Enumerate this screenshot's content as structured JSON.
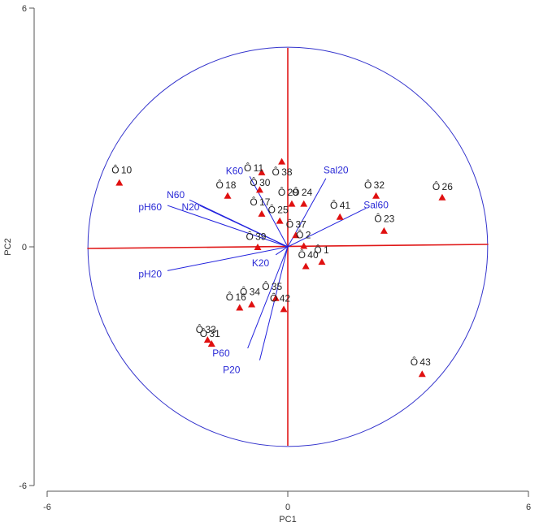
{
  "chart_data": {
    "type": "scatter",
    "xlabel": "PC1",
    "ylabel": "PC2",
    "xlim": [
      -6,
      6
    ],
    "ylim": [
      -6,
      6
    ],
    "x_ticks": [
      "-6",
      "0",
      "6"
    ],
    "y_ticks": [
      "6",
      "0",
      "-6"
    ],
    "point_marker": "Ô",
    "circle_radius": 5,
    "colors": {
      "circle": "#3333cc",
      "axes_lines": "#e01818",
      "vectors": "#2222dd",
      "triangles": "#e01010"
    },
    "labeled_points": [
      {
        "label": "10",
        "x": -4.3,
        "y": 1.93
      },
      {
        "label": "11",
        "x": -1.0,
        "y": 1.98
      },
      {
        "label": "18",
        "x": -1.7,
        "y": 1.55
      },
      {
        "label": "30",
        "x": -0.85,
        "y": 1.61
      },
      {
        "label": "38",
        "x": -0.3,
        "y": 1.88
      },
      {
        "label": "29",
        "x": -0.15,
        "y": 1.37
      },
      {
        "label": "24",
        "x": 0.2,
        "y": 1.37
      },
      {
        "label": "17",
        "x": -0.85,
        "y": 1.12
      },
      {
        "label": "25",
        "x": -0.4,
        "y": 0.93
      },
      {
        "label": "32",
        "x": 2.0,
        "y": 1.55
      },
      {
        "label": "26",
        "x": 3.7,
        "y": 1.51
      },
      {
        "label": "41",
        "x": 1.15,
        "y": 1.04
      },
      {
        "label": "23",
        "x": 2.25,
        "y": 0.7
      },
      {
        "label": "37",
        "x": 0.05,
        "y": 0.56
      },
      {
        "label": "2",
        "x": 0.3,
        "y": 0.3
      },
      {
        "label": "39",
        "x": -0.95,
        "y": 0.26
      },
      {
        "label": "1",
        "x": 0.75,
        "y": -0.08
      },
      {
        "label": "40",
        "x": 0.35,
        "y": -0.2
      },
      {
        "label": "35",
        "x": -0.55,
        "y": -1.0
      },
      {
        "label": "34",
        "x": -1.1,
        "y": -1.13
      },
      {
        "label": "16",
        "x": -1.45,
        "y": -1.27
      },
      {
        "label": "42",
        "x": -0.35,
        "y": -1.3
      },
      {
        "label": "33",
        "x": -2.2,
        "y": -2.08
      },
      {
        "label": "31",
        "x": -2.1,
        "y": -2.18
      },
      {
        "label": "43",
        "x": 3.15,
        "y": -2.9
      }
    ],
    "triangles": [
      {
        "x": -4.2,
        "y": 1.61
      },
      {
        "x": -1.5,
        "y": 1.28
      },
      {
        "x": -0.65,
        "y": 1.87
      },
      {
        "x": -0.7,
        "y": 1.43
      },
      {
        "x": -0.15,
        "y": 2.14
      },
      {
        "x": 0.1,
        "y": 1.08
      },
      {
        "x": 0.4,
        "y": 1.08
      },
      {
        "x": -0.65,
        "y": 0.83
      },
      {
        "x": -0.2,
        "y": 0.65
      },
      {
        "x": 2.2,
        "y": 1.28
      },
      {
        "x": 3.85,
        "y": 1.24
      },
      {
        "x": 1.3,
        "y": 0.75
      },
      {
        "x": 2.4,
        "y": 0.4
      },
      {
        "x": 0.2,
        "y": 0.29
      },
      {
        "x": 0.4,
        "y": 0.02
      },
      {
        "x": -0.75,
        "y": -0.01
      },
      {
        "x": 0.85,
        "y": -0.38
      },
      {
        "x": 0.45,
        "y": -0.49
      },
      {
        "x": -0.3,
        "y": -1.29
      },
      {
        "x": -0.9,
        "y": -1.45
      },
      {
        "x": -1.2,
        "y": -1.53
      },
      {
        "x": -0.1,
        "y": -1.57
      },
      {
        "x": -2.0,
        "y": -2.34
      },
      {
        "x": -1.9,
        "y": -2.44
      },
      {
        "x": 3.35,
        "y": -3.2
      }
    ],
    "vectors": [
      {
        "label": "K60",
        "x": -0.95,
        "y": 1.77
      },
      {
        "label": "N60",
        "x": -2.45,
        "y": 1.18
      },
      {
        "label": "pH60",
        "x": -3.0,
        "y": 1.04
      },
      {
        "label": "N20",
        "x": -2.2,
        "y": 1.04
      },
      {
        "label": "Sal20",
        "x": 0.95,
        "y": 1.72
      },
      {
        "label": "Sal60",
        "x": 1.95,
        "y": 0.97
      },
      {
        "label": "pH20",
        "x": -3.0,
        "y": -0.6
      },
      {
        "label": "K20",
        "x": -0.3,
        "y": -0.2
      },
      {
        "label": "P60",
        "x": -1.0,
        "y": -2.55
      },
      {
        "label": "P20",
        "x": -0.7,
        "y": -2.85
      }
    ]
  }
}
